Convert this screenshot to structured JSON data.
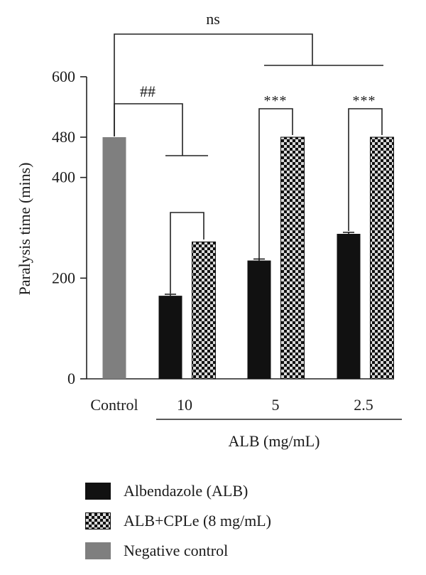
{
  "chart_data": {
    "type": "bar",
    "title": "",
    "ylabel": "Paralysis time (mins)",
    "xlabel": "ALB (mg/mL)",
    "ylim": [
      0,
      600
    ],
    "yticks": [
      "0",
      "200",
      "400",
      "480",
      "600"
    ],
    "ytick_values": [
      0,
      200,
      400,
      480,
      600
    ],
    "categories": [
      "Control",
      "10",
      "5",
      "2.5"
    ],
    "grouped_categories_label": "ALB (mg/mL)",
    "series": [
      {
        "name": "Albendazole (ALB)",
        "pattern": "solid",
        "color": "#111111",
        "values": [
          null,
          165,
          235,
          288
        ],
        "errors": [
          null,
          3,
          3,
          3
        ]
      },
      {
        "name": "ALB+CPLe (8 mg/mL)",
        "pattern": "checker",
        "color": "#111111",
        "values": [
          null,
          272,
          480,
          480
        ],
        "errors": [
          null,
          0,
          0,
          0
        ]
      },
      {
        "name": "Negative control",
        "pattern": "solid",
        "color": "#7f7f7f",
        "values": [
          480,
          null,
          null,
          null
        ],
        "errors": [
          0,
          null,
          null,
          null
        ]
      }
    ],
    "annotations": {
      "ns": "ns",
      "hash": "##",
      "stars_5": "***",
      "stars_2_5": "***"
    },
    "legend_position": "bottom",
    "grid": false
  }
}
